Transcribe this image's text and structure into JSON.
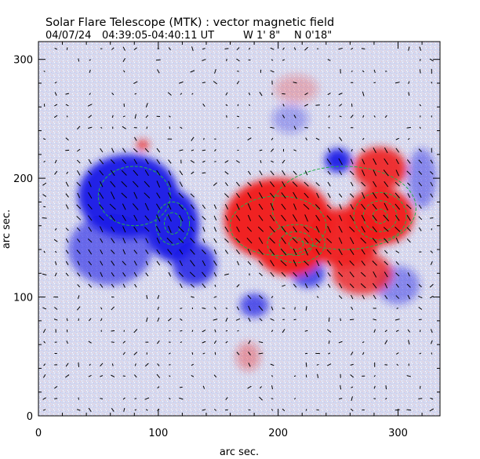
{
  "chart_data": {
    "type": "heatmap",
    "title": "Solar Flare Telescope (MTK) : vector magnetic field",
    "subtitle_date": "04/07/24",
    "subtitle_time": "04:39:05-04:40:11 UT",
    "subtitle_lon": "W 1' 8\"",
    "subtitle_lat": "N 0'18\"",
    "xlabel": "arc sec.",
    "ylabel": "arc sec.",
    "xlim": [
      0,
      335
    ],
    "ylim": [
      0,
      315
    ],
    "xticks": [
      0,
      100,
      200,
      300
    ],
    "yticks": [
      0,
      100,
      200,
      300
    ],
    "colormap": {
      "negative": "#2020e6",
      "positive": "#f02020",
      "background": "#d8dcf0",
      "contour": "#22b04a",
      "vector": "#000000"
    },
    "regions": [
      {
        "polarity": "negative",
        "label": "strong negative plage (west part)",
        "cx": 75,
        "cy": 185,
        "rx": 42,
        "ry": 35,
        "strength": 1.0
      },
      {
        "polarity": "negative",
        "label": "negative plage core",
        "cx": 112,
        "cy": 160,
        "rx": 22,
        "ry": 30,
        "strength": 1.0
      },
      {
        "polarity": "negative",
        "label": "negative lower lobe",
        "cx": 130,
        "cy": 128,
        "rx": 18,
        "ry": 18,
        "strength": 0.85
      },
      {
        "polarity": "negative",
        "label": "negative extension",
        "cx": 60,
        "cy": 140,
        "rx": 35,
        "ry": 30,
        "strength": 0.6
      },
      {
        "polarity": "negative",
        "label": "small negative spot",
        "cx": 250,
        "cy": 215,
        "rx": 11,
        "ry": 10,
        "strength": 0.95
      },
      {
        "polarity": "negative",
        "label": "negative intrusion",
        "cx": 225,
        "cy": 120,
        "rx": 14,
        "ry": 12,
        "strength": 0.75
      },
      {
        "polarity": "negative",
        "label": "negative intrusion 2",
        "cx": 180,
        "cy": 93,
        "rx": 12,
        "ry": 10,
        "strength": 0.7
      },
      {
        "polarity": "negative",
        "label": "weak negative east",
        "cx": 300,
        "cy": 110,
        "rx": 18,
        "ry": 16,
        "strength": 0.45
      },
      {
        "polarity": "negative",
        "label": "weak negative patch",
        "cx": 210,
        "cy": 250,
        "rx": 15,
        "ry": 12,
        "strength": 0.3
      },
      {
        "polarity": "negative",
        "label": "weak negative NE",
        "cx": 320,
        "cy": 200,
        "rx": 12,
        "ry": 25,
        "strength": 0.45
      },
      {
        "polarity": "positive",
        "label": "positive plage west lobe",
        "cx": 200,
        "cy": 165,
        "rx": 45,
        "ry": 35,
        "strength": 1.0
      },
      {
        "polarity": "positive",
        "label": "positive umbra A",
        "cx": 210,
        "cy": 140,
        "rx": 28,
        "ry": 22,
        "strength": 1.0
      },
      {
        "polarity": "positive",
        "label": "positive umbra B",
        "cx": 285,
        "cy": 168,
        "rx": 28,
        "ry": 24,
        "strength": 1.0
      },
      {
        "polarity": "positive",
        "label": "positive bridge",
        "cx": 255,
        "cy": 150,
        "rx": 30,
        "ry": 25,
        "strength": 0.95
      },
      {
        "polarity": "positive",
        "label": "positive north arm",
        "cx": 285,
        "cy": 208,
        "rx": 22,
        "ry": 18,
        "strength": 0.9
      },
      {
        "polarity": "positive",
        "label": "positive south arm",
        "cx": 270,
        "cy": 120,
        "rx": 25,
        "ry": 18,
        "strength": 0.8
      },
      {
        "polarity": "positive",
        "label": "small positive spot",
        "cx": 87,
        "cy": 228,
        "rx": 5,
        "ry": 4,
        "strength": 0.9
      },
      {
        "polarity": "positive",
        "label": "weak positive south",
        "cx": 175,
        "cy": 50,
        "rx": 10,
        "ry": 12,
        "strength": 0.35
      },
      {
        "polarity": "positive",
        "label": "weak positive north",
        "cx": 215,
        "cy": 275,
        "rx": 18,
        "ry": 12,
        "strength": 0.25
      }
    ],
    "contours": [
      {
        "cx": 80,
        "cy": 185,
        "rx": 30,
        "ry": 25
      },
      {
        "cx": 112,
        "cy": 162,
        "rx": 14,
        "ry": 18
      },
      {
        "cx": 112,
        "cy": 162,
        "rx": 7,
        "ry": 9
      },
      {
        "cx": 200,
        "cy": 160,
        "rx": 40,
        "ry": 25
      },
      {
        "cx": 215,
        "cy": 145,
        "rx": 24,
        "ry": 16
      },
      {
        "cx": 215,
        "cy": 145,
        "rx": 14,
        "ry": 10
      },
      {
        "cx": 215,
        "cy": 145,
        "rx": 6,
        "ry": 5
      },
      {
        "cx": 285,
        "cy": 168,
        "rx": 22,
        "ry": 20
      },
      {
        "cx": 285,
        "cy": 168,
        "rx": 14,
        "ry": 13
      },
      {
        "cx": 285,
        "cy": 168,
        "rx": 6,
        "ry": 6
      },
      {
        "cx": 255,
        "cy": 175,
        "rx": 60,
        "ry": 35
      }
    ],
    "vector_field": {
      "grid_spacing": 9.5,
      "dominant_angle_deg": 35,
      "max_length": 8
    }
  }
}
